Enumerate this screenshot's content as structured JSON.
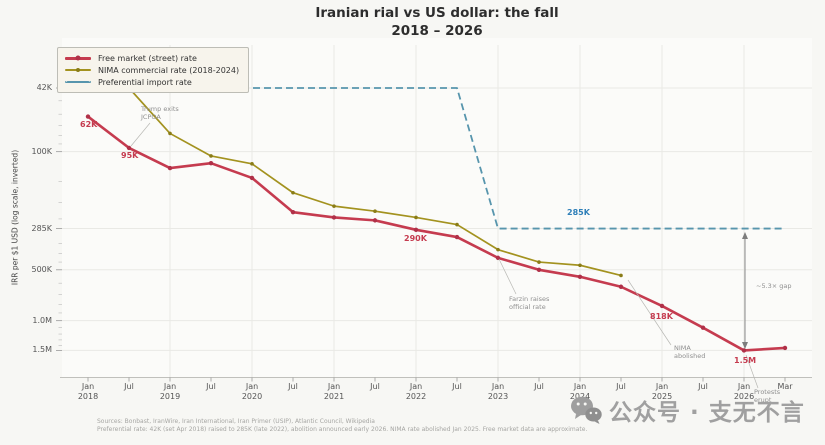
{
  "title": {
    "line1": "Iranian rial vs US dollar: the fall",
    "line2": "2018 – 2026"
  },
  "legend": {
    "free_market": "Free market (street) rate",
    "nima": "NIMA commercial rate (2018-2024)",
    "preferential": "Preferential import rate"
  },
  "colors": {
    "free_market": "#c53b4f",
    "free_market_marker": "#b03048",
    "nima": "#a3921f",
    "nima_marker": "#8a7c17",
    "preferential": "#5795ad",
    "label_blue": "#2e7fb8",
    "grid": "#e9e9e5",
    "annotation_gray": "#8f8f8f",
    "background": "#f7f7f4"
  },
  "chart_data": {
    "type": "line",
    "title": "Iranian rial vs US dollar: the fall 2018 – 2026",
    "ylabel": "IRR per $1 USD (log scale, inverted)",
    "y_scale": "log, inverted (42K top, 1.5M bottom)",
    "grid": "on",
    "legend_position": "upper left",
    "y_ticks": [
      {
        "label": "42K",
        "value": 42000
      },
      {
        "label": "100K",
        "value": 100000
      },
      {
        "label": "285K",
        "value": 285000
      },
      {
        "label": "500K",
        "value": 500000
      },
      {
        "label": "1.0M",
        "value": 1000000
      },
      {
        "label": "1.5M",
        "value": 1500000
      }
    ],
    "x_ticks": [
      {
        "month": "Jan",
        "year": "2018"
      },
      {
        "month": "Jul",
        "year": ""
      },
      {
        "month": "Jan",
        "year": "2019"
      },
      {
        "month": "Jul",
        "year": ""
      },
      {
        "month": "Jan",
        "year": "2020"
      },
      {
        "month": "Jul",
        "year": ""
      },
      {
        "month": "Jan",
        "year": "2021"
      },
      {
        "month": "Jul",
        "year": ""
      },
      {
        "month": "Jan",
        "year": "2022"
      },
      {
        "month": "Jul",
        "year": ""
      },
      {
        "month": "Jan",
        "year": "2023"
      },
      {
        "month": "Jul",
        "year": ""
      },
      {
        "month": "Jan",
        "year": "2024"
      },
      {
        "month": "Jul",
        "year": ""
      },
      {
        "month": "Jan",
        "year": "2025"
      },
      {
        "month": "Jul",
        "year": ""
      },
      {
        "month": "Jan",
        "year": "2026"
      },
      {
        "month": "Mar",
        "year": ""
      }
    ],
    "series": [
      {
        "name": "Free market (street) rate",
        "style": "solid",
        "color_key": "free_market",
        "points": [
          {
            "x": "Jan 2018",
            "xi": 0,
            "v": 62000
          },
          {
            "x": "Jul 2018",
            "xi": 1,
            "v": 95000
          },
          {
            "x": "Jan 2019",
            "xi": 2,
            "v": 125000
          },
          {
            "x": "Jul 2019",
            "xi": 3,
            "v": 117000
          },
          {
            "x": "Jan 2020",
            "xi": 4,
            "v": 143000
          },
          {
            "x": "Jul 2020",
            "xi": 5,
            "v": 228000
          },
          {
            "x": "Jan 2021",
            "xi": 6,
            "v": 245000
          },
          {
            "x": "Jul 2021",
            "xi": 7,
            "v": 255000
          },
          {
            "x": "Jan 2022",
            "xi": 8,
            "v": 290000
          },
          {
            "x": "Jul 2022",
            "xi": 9,
            "v": 320000
          },
          {
            "x": "Jan 2023",
            "xi": 10,
            "v": 425000
          },
          {
            "x": "Jul 2023",
            "xi": 11,
            "v": 500000
          },
          {
            "x": "Jan 2024",
            "xi": 12,
            "v": 550000
          },
          {
            "x": "Jul 2024",
            "xi": 13,
            "v": 630000
          },
          {
            "x": "Jan 2025",
            "xi": 14,
            "v": 818000
          },
          {
            "x": "Jul 2025",
            "xi": 15,
            "v": 1100000
          },
          {
            "x": "Jan 2026",
            "xi": 16,
            "v": 1500000
          },
          {
            "x": "Mar 2026",
            "xi": 17,
            "v": 1450000
          }
        ]
      },
      {
        "name": "NIMA commercial rate (2018-2024)",
        "style": "solid",
        "color_key": "nima",
        "points": [
          {
            "x": "Jul 2018",
            "xi": 1,
            "v": 42000
          },
          {
            "x": "Jan 2019",
            "xi": 2,
            "v": 78000
          },
          {
            "x": "Jul 2019",
            "xi": 3,
            "v": 106000
          },
          {
            "x": "Jan 2020",
            "xi": 4,
            "v": 118000
          },
          {
            "x": "Jul 2020",
            "xi": 5,
            "v": 175000
          },
          {
            "x": "Jan 2021",
            "xi": 6,
            "v": 210000
          },
          {
            "x": "Jul 2021",
            "xi": 7,
            "v": 225000
          },
          {
            "x": "Jan 2022",
            "xi": 8,
            "v": 245000
          },
          {
            "x": "Jul 2022",
            "xi": 9,
            "v": 270000
          },
          {
            "x": "Jan 2023",
            "xi": 10,
            "v": 380000
          },
          {
            "x": "Jul 2023",
            "xi": 11,
            "v": 450000
          },
          {
            "x": "Jan 2024",
            "xi": 12,
            "v": 470000
          },
          {
            "x": "Jul 2024",
            "xi": 13,
            "v": 540000
          }
        ]
      },
      {
        "name": "Preferential import rate",
        "style": "dashed",
        "color_key": "preferential",
        "points": [
          {
            "x": "Jan 2018",
            "xi": 0,
            "v": 42000
          },
          {
            "x": "Jul 2022",
            "xi": 9,
            "v": 42000
          },
          {
            "x": "Jan 2023",
            "xi": 10,
            "v": 285000
          },
          {
            "x": "Mar 2026",
            "xi": 17,
            "v": 285000
          }
        ]
      }
    ]
  },
  "point_labels": {
    "free_start": "62K",
    "free_jul2018": "95K",
    "free_jan2022": "290K",
    "free_jan2025": "818K",
    "free_jan2026": "1.5M",
    "pref_285k": "285K"
  },
  "annotations": {
    "trump": {
      "line1": "Trump exits",
      "line2": "JCPOA"
    },
    "farzin": {
      "line1": "Farzin raises",
      "line2": "official rate"
    },
    "nima_abolished": {
      "line1": "NIMA",
      "line2": "abolished"
    },
    "protests": {
      "line1": "Protests",
      "line2": "erupt"
    },
    "gap": "~5.3× gap"
  },
  "sources": {
    "line1": "Sources: Bonbast, IranWire, Iran International, Iran Primer (USIP), Atlantic Council, Wikipedia",
    "line2": "Preferential rate: 42K (set Apr 2018) raised to 285K (late 2022), abolition announced early 2026. NIMA rate abolished Jan 2025. Free market data are approximate."
  },
  "watermark": {
    "text": "公众号 · 支无不言"
  }
}
